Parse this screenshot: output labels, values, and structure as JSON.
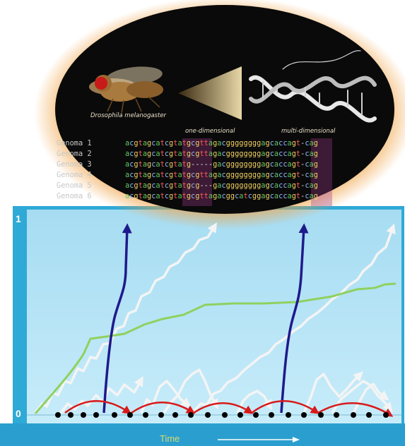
{
  "oval": {
    "species_caption": "Drosophila melanogaster",
    "left_caption": "one-dimensional",
    "right_caption": "multi-dimensional",
    "alignment": [
      {
        "label": "Genoma 1",
        "seq": "acgtagcatcgtatgcgttagacggggggggagcaccagt-cag"
      },
      {
        "label": "Genoma 2",
        "seq": "acgtagcatcgtatgcgttagacggggggggagcaccagt-cag"
      },
      {
        "label": "Genoma 3",
        "seq": "acgtagcatcgtatg-----gacggggggggagcaccagt-cag"
      },
      {
        "label": "Genoma 4",
        "seq": "acgtagcatcgtatgcgttagacggggggggagcaccagt-cag"
      },
      {
        "label": "Genoma 5",
        "seq": "acgtagcatcgtatgcg---gacggggggggagcaccagt-cag"
      },
      {
        "label": "Genoma 6",
        "seq": "acgtagcatcgtatgcgttagacggcatcggagcaccagt-cag"
      }
    ]
  },
  "plot": {
    "y_top_label": "1",
    "y_bottom_label": "0",
    "x_label": "Time",
    "colors": {
      "panel_bg": "#bfe9f8",
      "frame": "#2fa9d6",
      "green_line": "#8fd15e",
      "blue_arrow": "#1f1a8c",
      "red_arrow": "#d81a1a",
      "white_path": "#f4f4f4",
      "dots": "#000000"
    }
  }
}
